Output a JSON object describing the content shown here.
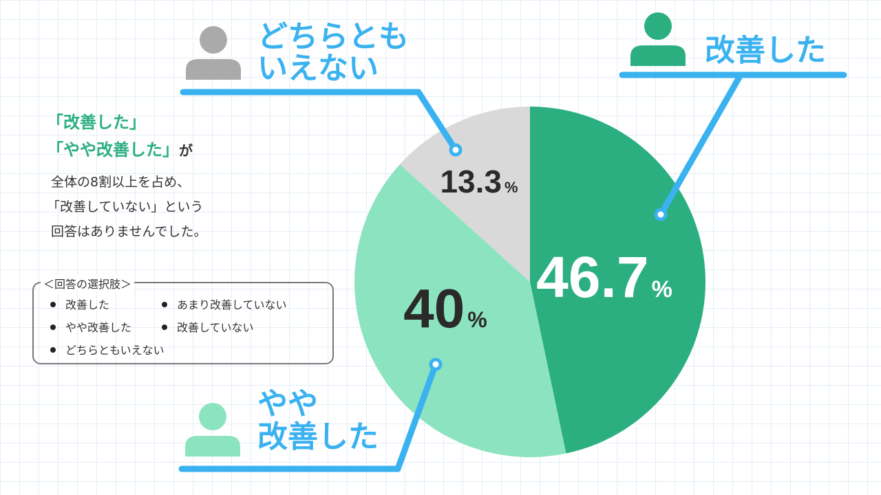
{
  "chart_data": {
    "type": "pie",
    "start": "12 o'clock, clockwise",
    "slices": [
      {
        "label": "改善した",
        "value": 46.7,
        "display": "46.7",
        "color": "#2baf80",
        "text_color": "#ffffff",
        "callout_color": "#2baf80"
      },
      {
        "label": "やや改善した",
        "value": 40,
        "display": "40",
        "color": "#8ce3c0",
        "text_color": "#2a2a2a",
        "callout_color": "#8ce3c0"
      },
      {
        "label": "どちらともいえない",
        "value": 13.3,
        "display": "13.3",
        "color": "#d9d9d9",
        "text_color": "#2a2a2a",
        "callout_color": "#aaaaaa"
      }
    ],
    "unit": "%",
    "callouts": [
      {
        "lines": [
          "改善した"
        ]
      },
      {
        "lines": [
          "やや",
          "改善した"
        ]
      },
      {
        "lines": [
          "どちらとも",
          "いえない"
        ]
      }
    ],
    "leader_color": "#3bb2f0",
    "callout_text_color": "#3bb2f0"
  },
  "summary": {
    "highlight_1": "「改善した」",
    "highlight_2": "「やや改善した」",
    "highlight_2_tail": "が",
    "lines": [
      "全体の8割以上を占め、",
      "「改善していない」という",
      "回答はありませんでした。"
    ]
  },
  "choices": {
    "caption": "＜回答の選択肢＞",
    "items": [
      "改善した",
      "あまり改善していない",
      "やや改善した",
      "改善していない",
      "どちらともいえない"
    ]
  }
}
